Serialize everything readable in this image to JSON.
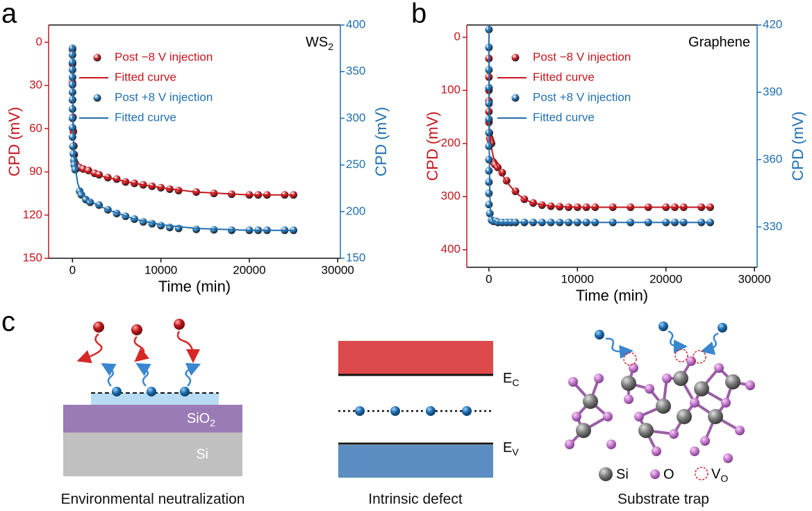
{
  "chart_data": [
    {
      "type": "scatter",
      "panel_label": "a",
      "title": "WS",
      "title_sub": "2",
      "xlabel": "Time (min)",
      "ylabel": "CPD (mV)",
      "y2label": "CPD (mV)",
      "xlim": [
        -2700,
        30300
      ],
      "xticks": [
        0,
        10000,
        20000,
        30000
      ],
      "ylim": [
        150,
        -12
      ],
      "yticks": [
        0,
        30,
        60,
        90,
        120,
        150
      ],
      "y_color": "#c3161c",
      "y2lim": [
        150,
        400
      ],
      "y2ticks": [
        150,
        200,
        250,
        300,
        350,
        400
      ],
      "y2_color": "#1f6fb0",
      "series": [
        {
          "name": "Post −8 V injection",
          "kind": "scatter",
          "color": "#c3161c",
          "x": [
            0,
            0,
            0,
            0,
            50,
            100,
            150,
            200,
            300,
            500,
            800,
            1200,
            1800,
            2500,
            3000,
            4000,
            5000,
            6000,
            7000,
            8000,
            9000,
            10000,
            11000,
            12000,
            14000,
            16000,
            18000,
            20000,
            21000,
            22000,
            24000,
            25000
          ],
          "values": [
            5,
            15,
            28,
            40,
            52,
            62,
            72,
            78,
            84,
            86,
            87,
            88,
            89,
            91,
            92,
            94,
            95,
            97,
            98,
            99,
            100,
            101,
            102,
            103,
            104,
            105,
            105.5,
            106,
            106,
            106,
            106,
            106
          ]
        },
        {
          "name": "Fitted curve",
          "kind": "line",
          "color": "#c3161c",
          "x": [
            0,
            50,
            150,
            300,
            600,
            1000,
            2000,
            4000,
            7000,
            10000,
            14000,
            20000,
            25000
          ],
          "values": [
            5,
            50,
            72,
            84,
            87,
            89,
            91,
            94,
            98,
            101,
            104,
            106,
            106
          ]
        },
        {
          "name": "Post +8 V injection",
          "kind": "scatter",
          "color": "#1f6fb0",
          "axis": "y2",
          "x": [
            0,
            0,
            0,
            0,
            0,
            0,
            0,
            0,
            0,
            0,
            0,
            0,
            50,
            100,
            150,
            200,
            300,
            800,
            1000,
            1500,
            2000,
            3000,
            4000,
            5000,
            6000,
            7000,
            8000,
            9000,
            10000,
            11000,
            12000,
            14000,
            16000,
            18000,
            20000,
            21000,
            22000,
            24000,
            25000
          ],
          "values": [
            375,
            368,
            360,
            352,
            344,
            336,
            328,
            320,
            310,
            300,
            290,
            280,
            270,
            262,
            255,
            250,
            245,
            222,
            218,
            213,
            210,
            207,
            202,
            198,
            195,
            192,
            189,
            187,
            185,
            183,
            182,
            181,
            180.5,
            180,
            180,
            180,
            180,
            180,
            180
          ]
        },
        {
          "name": "Fitted curve",
          "kind": "line",
          "color": "#1f6fb0",
          "axis": "y2",
          "x": [
            0,
            50,
            150,
            300,
            600,
            1000,
            2000,
            4000,
            7000,
            10000,
            14000,
            20000,
            25000
          ],
          "values": [
            378,
            300,
            262,
            248,
            230,
            220,
            211,
            202,
            192,
            186,
            182,
            180,
            180
          ]
        }
      ]
    },
    {
      "type": "scatter",
      "panel_label": "b",
      "title": "Graphene",
      "xlabel": "Time (min)",
      "ylabel": "CPD (mV)",
      "y2label": "CPD (mV)",
      "xlim": [
        -2500,
        30300
      ],
      "xticks": [
        0,
        10000,
        20000,
        30000
      ],
      "ylim": [
        433,
        -23
      ],
      "yticks": [
        0,
        100,
        200,
        300,
        400
      ],
      "y_color": "#c3161c",
      "y2lim": [
        312,
        420
      ],
      "y2ticks": [
        330,
        360,
        390,
        420
      ],
      "y2_color": "#1f6fb0",
      "series": [
        {
          "name": "Post −8 V injection",
          "kind": "scatter",
          "color": "#c3161c",
          "x": [
            0,
            0,
            0,
            0,
            0,
            0,
            50,
            100,
            200,
            300,
            500,
            700,
            1000,
            1500,
            2000,
            3000,
            4000,
            5000,
            6000,
            7000,
            8000,
            9000,
            10000,
            11000,
            12000,
            14000,
            16000,
            18000,
            20000,
            21000,
            22000,
            24000,
            25000
          ],
          "values": [
            40,
            75,
            100,
            120,
            140,
            160,
            180,
            190,
            195,
            200,
            235,
            240,
            245,
            255,
            270,
            290,
            305,
            312,
            316,
            318,
            319,
            320,
            320,
            320,
            320,
            320,
            320,
            320,
            320,
            320,
            320,
            320,
            320
          ]
        },
        {
          "name": "Fitted curve",
          "kind": "line",
          "color": "#c3161c",
          "x": [
            0,
            50,
            200,
            500,
            1000,
            2000,
            3000,
            4000,
            5000,
            7000,
            10000,
            15000,
            25000
          ],
          "values": [
            10,
            170,
            200,
            225,
            245,
            272,
            292,
            305,
            312,
            318,
            320,
            320,
            320
          ]
        },
        {
          "name": "Post +8 V injection",
          "kind": "scatter",
          "color": "#1f6fb0",
          "axis": "y2",
          "x": [
            0,
            0,
            0,
            0,
            0,
            0,
            0,
            0,
            0,
            0,
            0,
            0,
            0,
            100,
            300,
            500,
            800,
            1000,
            1500,
            2000,
            2500,
            3000,
            4000,
            5000,
            6000,
            7000,
            8000,
            9000,
            10000,
            11000,
            12000,
            14000,
            16000,
            18000,
            20000,
            21000,
            22000,
            24000,
            25000
          ],
          "values": [
            418,
            410,
            400,
            392,
            385,
            378,
            372,
            366,
            360,
            355,
            350,
            345,
            340,
            336,
            333,
            332.5,
            332.5,
            332,
            332,
            332,
            332,
            332,
            332,
            332,
            332,
            332,
            332,
            332,
            332,
            332,
            332,
            332,
            332,
            332,
            332,
            332,
            332,
            332,
            332
          ]
        },
        {
          "name": "Fitted curve",
          "kind": "line",
          "color": "#1f6fb0",
          "axis": "y2",
          "x": [
            0,
            30,
            100,
            200,
            400,
            1000,
            25000
          ],
          "values": [
            420,
            370,
            345,
            336,
            333,
            332,
            332
          ]
        }
      ]
    }
  ],
  "panel_c": {
    "label": "c",
    "captions": [
      "Environmental neutralization",
      "Intrinsic defect",
      "Substrate trap"
    ],
    "sio2": [
      "SiO",
      "2"
    ],
    "si": "Si",
    "ec": [
      "E",
      "C"
    ],
    "ev": [
      "E",
      "V"
    ],
    "legend": [
      "Si",
      "O",
      [
        "V",
        "O"
      ]
    ]
  }
}
